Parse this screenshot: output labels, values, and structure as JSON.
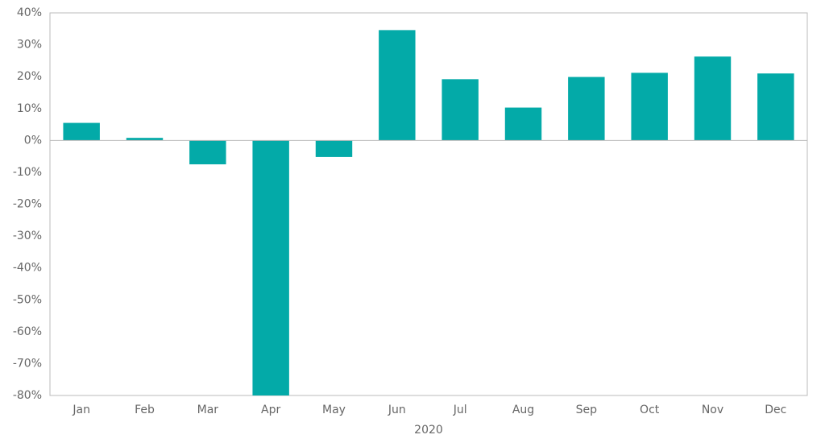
{
  "chart_data": {
    "type": "bar",
    "x_label": "2020",
    "categories": [
      "Jan",
      "Feb",
      "Mar",
      "Apr",
      "May",
      "Jun",
      "Jul",
      "Aug",
      "Sep",
      "Oct",
      "Nov",
      "Dec"
    ],
    "values": [
      5.5,
      0.8,
      -7.5,
      -80,
      -5.2,
      34.6,
      19.2,
      10.3,
      19.9,
      21.2,
      26.3,
      21
    ],
    "color": "#03aaa8",
    "ylim": [
      -80,
      40
    ],
    "yticks": [
      {
        "value": -80,
        "label": "-80%"
      },
      {
        "value": -70,
        "label": "-70%"
      },
      {
        "value": -60,
        "label": "-60%"
      },
      {
        "value": -50,
        "label": "-50%"
      },
      {
        "value": -40,
        "label": "-40%"
      },
      {
        "value": -30,
        "label": "-30%"
      },
      {
        "value": -20,
        "label": "-20%"
      },
      {
        "value": -10,
        "label": "-10%"
      },
      {
        "value": 0,
        "label": "0%"
      },
      {
        "value": 10,
        "label": "10%"
      },
      {
        "value": 20,
        "label": "20%"
      },
      {
        "value": 30,
        "label": "30%"
      },
      {
        "value": 40,
        "label": "40%"
      }
    ]
  }
}
